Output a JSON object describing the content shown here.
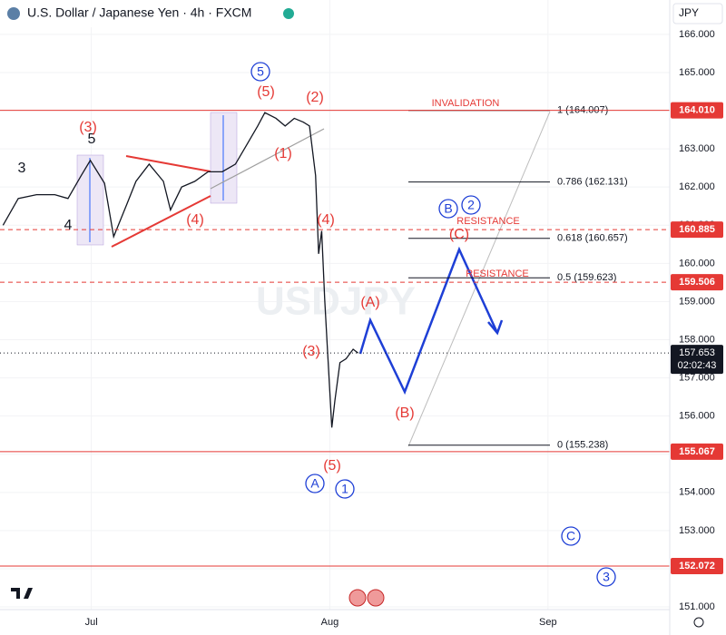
{
  "chart_data": {
    "type": "line",
    "title": "U.S. Dollar / Japanese Yen · 4h · FXCM",
    "watermark": "USDJPY",
    "currency": "JPY",
    "color": "#131722",
    "x": [
      -8.7,
      -7.2,
      -5.4,
      -3.6,
      -2.3,
      -1.0,
      -0.1,
      1.3,
      2.2,
      3.5,
      4.4,
      5.7,
      7.1,
      7.8,
      8.9,
      10.2,
      11.5,
      12.9,
      14.2,
      15.3,
      16.4,
      17.1,
      18.2,
      19.1,
      20.0,
      20.9,
      21.5,
      22.1,
      22.4,
      22.7,
      23.0,
      23.3,
      23.7,
      24.0,
      24.5,
      25.1,
      25.8,
      26.3
    ],
    "values": [
      161.0,
      161.7,
      161.8,
      161.8,
      161.7,
      162.3,
      162.7,
      162.1,
      160.7,
      161.55,
      162.15,
      162.6,
      162.15,
      161.4,
      162.0,
      162.15,
      162.4,
      162.4,
      162.6,
      163.1,
      163.6,
      163.95,
      163.8,
      163.6,
      163.8,
      163.7,
      163.6,
      162.3,
      160.25,
      160.85,
      159.05,
      157.6,
      155.7,
      156.4,
      157.4,
      157.5,
      157.75,
      157.65
    ],
    "xlim": [
      -9,
      57
    ],
    "xticks": [
      {
        "value": 0,
        "label": "Jul"
      },
      {
        "value": 23.5,
        "label": "Aug"
      },
      {
        "value": 45,
        "label": "Sep"
      }
    ],
    "ylim": [
      150.93,
      166.9
    ],
    "yticks": [
      {
        "value": 151,
        "label": "151.000"
      },
      {
        "value": 152,
        "label": "152.000"
      },
      {
        "value": 153,
        "label": "153.000"
      },
      {
        "value": 154,
        "label": "154.000"
      },
      {
        "value": 155,
        "label": "155.000"
      },
      {
        "value": 156,
        "label": "156.000"
      },
      {
        "value": 157,
        "label": "157.000"
      },
      {
        "value": 158,
        "label": "158.000"
      },
      {
        "value": 159,
        "label": "159.000"
      },
      {
        "value": 160,
        "label": "160.000"
      },
      {
        "value": 161,
        "label": "161.000"
      },
      {
        "value": 162,
        "label": "162.000"
      },
      {
        "value": 163,
        "label": "163.000"
      },
      {
        "value": 164,
        "label": "164.000"
      },
      {
        "value": 165,
        "label": "165.000"
      },
      {
        "value": 166,
        "label": "166.000"
      }
    ],
    "levels": [
      {
        "value": 164.01,
        "label": "164.010",
        "style": "solid"
      },
      {
        "value": 160.885,
        "label": "160.885",
        "style": "dashed"
      },
      {
        "value": 159.506,
        "label": "159.506",
        "style": "dashed"
      },
      {
        "value": 155.067,
        "label": "155.067",
        "style": "solid"
      },
      {
        "value": 152.072,
        "label": "152.072",
        "style": "solid"
      }
    ],
    "last_price": {
      "value": 157.653,
      "label": "157.653",
      "countdown": "02:02:43"
    },
    "fib": [
      {
        "value": 164.007,
        "label": "1 (164.007)"
      },
      {
        "value": 162.131,
        "label": "0.786 (162.131)"
      },
      {
        "value": 160.657,
        "label": "0.618 (160.657)"
      },
      {
        "value": 159.623,
        "label": "0.5 (159.623)"
      },
      {
        "value": 155.238,
        "label": "0 (155.238)"
      }
    ],
    "annotations": [
      {
        "text": "3",
        "kind": "plain",
        "color": "#131722"
      },
      {
        "text": "5",
        "kind": "plain",
        "color": "#131722"
      },
      {
        "text": "4",
        "kind": "plain",
        "color": "#131722"
      },
      {
        "text": "(3)",
        "kind": "plain",
        "color": "#e53935"
      },
      {
        "text": "(4)",
        "kind": "plain",
        "color": "#e53935"
      },
      {
        "text": "5",
        "kind": "circle",
        "color": "#1e3fd6"
      },
      {
        "text": "(5)",
        "kind": "plain",
        "color": "#e53935"
      },
      {
        "text": "(2)",
        "kind": "plain",
        "color": "#e53935"
      },
      {
        "text": "(1)",
        "kind": "plain",
        "color": "#e53935"
      },
      {
        "text": "(4)",
        "kind": "plain",
        "color": "#e53935"
      },
      {
        "text": "(3)",
        "kind": "plain",
        "color": "#e53935"
      },
      {
        "text": "(5)",
        "kind": "plain",
        "color": "#e53935"
      },
      {
        "text": "A",
        "kind": "circle",
        "color": "#1e3fd6"
      },
      {
        "text": "1",
        "kind": "circle",
        "color": "#1e3fd6"
      },
      {
        "text": "(A)",
        "kind": "plain",
        "color": "#e53935"
      },
      {
        "text": "(B)",
        "kind": "plain",
        "color": "#e53935"
      },
      {
        "text": "(C)",
        "kind": "plain",
        "color": "#e53935"
      },
      {
        "text": "B",
        "kind": "circle",
        "color": "#1e3fd6"
      },
      {
        "text": "2",
        "kind": "circle",
        "color": "#1e3fd6"
      },
      {
        "text": "C",
        "kind": "circle",
        "color": "#1e3fd6"
      },
      {
        "text": "3",
        "kind": "circle",
        "color": "#1e3fd6"
      },
      {
        "text": "INVALIDATION",
        "kind": "small",
        "color": "#e53935"
      },
      {
        "text": "RESISTANCE",
        "kind": "small",
        "color": "#e53935"
      },
      {
        "text": "RESISTANCE",
        "kind": "small",
        "color": "#e53935"
      }
    ]
  }
}
